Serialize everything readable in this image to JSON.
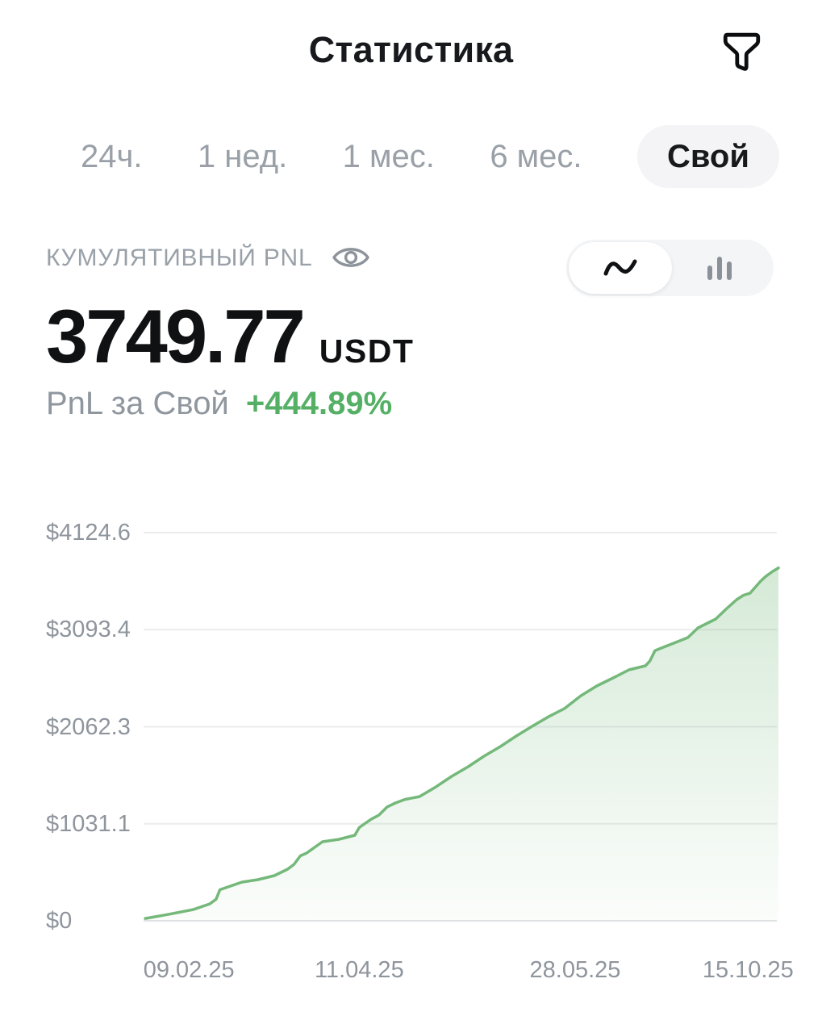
{
  "header": {
    "title": "Статистика",
    "filter_icon": "funnel-icon"
  },
  "period_tabs": {
    "items": [
      {
        "label": "24ч.",
        "selected": false
      },
      {
        "label": "1 нед.",
        "selected": false
      },
      {
        "label": "1 мес.",
        "selected": false
      },
      {
        "label": "6 мес.",
        "selected": false
      },
      {
        "label": "Свой",
        "selected": true
      }
    ]
  },
  "pnl": {
    "section_label": "КУМУЛЯТИВНЫЙ PNL",
    "visibility_icon": "eye-icon",
    "value": "3749.77",
    "currency": "USDT",
    "subtitle_prefix": "PnL за Свой",
    "change_percent": "+444.89%"
  },
  "view_toggle": {
    "selected": "line",
    "options": [
      {
        "name": "line",
        "icon": "line-chart-icon"
      },
      {
        "name": "bars",
        "icon": "bar-chart-icon"
      }
    ]
  },
  "colors": {
    "accent_green": "#55b066",
    "line_green": "#74b87a",
    "area_green": "#74b87a",
    "label_gray": "#9aa0a8",
    "axis_gray": "#8f959d",
    "pill_bg": "#f4f4f6",
    "toggle_bg": "#f4f5f7",
    "text_dark": "#17191c"
  },
  "chart_data": {
    "type": "area",
    "title": "Кумулятивный PnL за Свой период",
    "xlabel": "",
    "ylabel": "",
    "grid": "horizontal",
    "legend": "none",
    "ylim": [
      0,
      4124.6
    ],
    "y_ticks": [
      {
        "label": "$4124.6",
        "value": 4124.6
      },
      {
        "label": "$3093.4",
        "value": 3093.4
      },
      {
        "label": "$2062.3",
        "value": 2062.3
      },
      {
        "label": "$1031.1",
        "value": 1031.1
      },
      {
        "label": "$0",
        "value": 0
      }
    ],
    "x_ticks": [
      {
        "label": "09.02.25",
        "pos": 0.069
      },
      {
        "label": "11.04.25",
        "pos": 0.338
      },
      {
        "label": "28.05.25",
        "pos": 0.679
      },
      {
        "label": "15.10.25",
        "pos": 0.952
      }
    ],
    "final_value_usd": 3749.77,
    "points": [
      [
        0.0,
        25
      ],
      [
        0.038,
        70
      ],
      [
        0.076,
        120
      ],
      [
        0.102,
        180
      ],
      [
        0.112,
        230
      ],
      [
        0.118,
        330
      ],
      [
        0.127,
        352
      ],
      [
        0.153,
        412
      ],
      [
        0.178,
        437
      ],
      [
        0.204,
        480
      ],
      [
        0.225,
        549
      ],
      [
        0.235,
        600
      ],
      [
        0.245,
        690
      ],
      [
        0.255,
        720
      ],
      [
        0.28,
        840
      ],
      [
        0.306,
        866
      ],
      [
        0.331,
        909
      ],
      [
        0.338,
        990
      ],
      [
        0.346,
        1029
      ],
      [
        0.357,
        1080
      ],
      [
        0.369,
        1123
      ],
      [
        0.382,
        1210
      ],
      [
        0.395,
        1252
      ],
      [
        0.41,
        1290
      ],
      [
        0.433,
        1320
      ],
      [
        0.459,
        1423
      ],
      [
        0.484,
        1535
      ],
      [
        0.51,
        1638
      ],
      [
        0.535,
        1749
      ],
      [
        0.561,
        1852
      ],
      [
        0.586,
        1964
      ],
      [
        0.611,
        2067
      ],
      [
        0.637,
        2169
      ],
      [
        0.662,
        2255
      ],
      [
        0.688,
        2392
      ],
      [
        0.713,
        2495
      ],
      [
        0.739,
        2581
      ],
      [
        0.764,
        2667
      ],
      [
        0.79,
        2710
      ],
      [
        0.797,
        2760
      ],
      [
        0.805,
        2870
      ],
      [
        0.815,
        2898
      ],
      [
        0.841,
        2967
      ],
      [
        0.857,
        3010
      ],
      [
        0.873,
        3113
      ],
      [
        0.901,
        3207
      ],
      [
        0.917,
        3310
      ],
      [
        0.934,
        3413
      ],
      [
        0.945,
        3460
      ],
      [
        0.955,
        3481
      ],
      [
        0.972,
        3610
      ],
      [
        0.98,
        3660
      ],
      [
        0.991,
        3713
      ],
      [
        1.0,
        3749.77
      ]
    ]
  }
}
